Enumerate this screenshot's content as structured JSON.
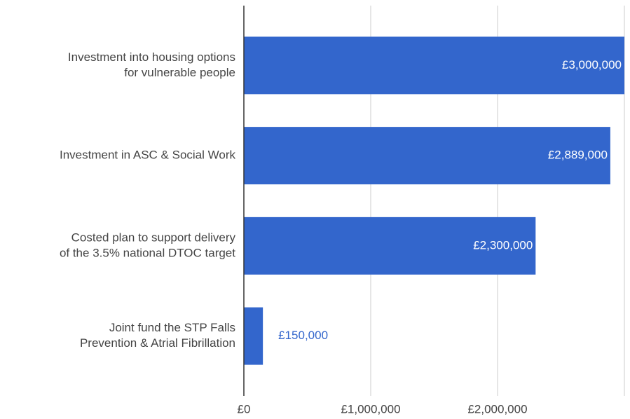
{
  "chart_data": {
    "type": "bar",
    "orientation": "horizontal",
    "categories": [
      [
        "Investment into housing options",
        "for vulnerable people"
      ],
      [
        "Investment in ASC & Social Work"
      ],
      [
        "Costed plan to support delivery",
        "of the 3.5% national DTOC target"
      ],
      [
        "Joint fund the STP Falls",
        "Prevention & Atrial Fibrillation"
      ]
    ],
    "values": [
      3000000,
      2889000,
      2300000,
      150000
    ],
    "value_labels": [
      "£3,000,000",
      "£2,889,000",
      "£2,300,000",
      "£150,000"
    ],
    "color": "#3366cc",
    "xlim": [
      0,
      3000000
    ],
    "xticks": [
      {
        "value": 0,
        "label": "£0"
      },
      {
        "value": 1000000,
        "label": "£1,000,000"
      },
      {
        "value": 2000000,
        "label": "£2,000,000"
      }
    ],
    "grid": true
  }
}
